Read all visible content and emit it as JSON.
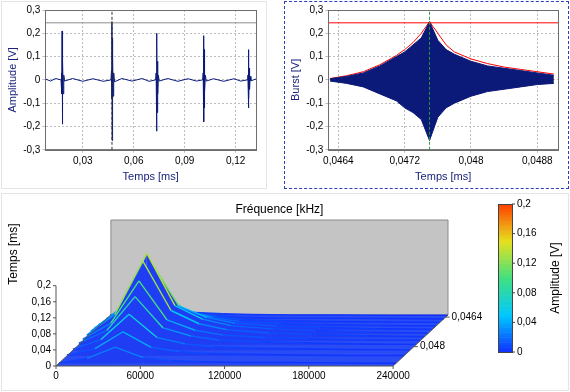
{
  "chart_data": [
    {
      "type": "line",
      "x_label": "Temps [ms]",
      "y_label": "Amplitude [V]",
      "x": [
        0.008,
        0.011,
        0.014,
        0.0172,
        0.0175,
        0.0177,
        0.0178,
        0.0179,
        0.018,
        0.0181,
        0.0183,
        0.0185,
        0.0188,
        0.0193,
        0.024,
        0.03,
        0.036,
        0.042,
        0.0466,
        0.0469,
        0.0471,
        0.0472,
        0.0473,
        0.0474,
        0.0475,
        0.0477,
        0.0479,
        0.0482,
        0.0487,
        0.053,
        0.059,
        0.065,
        0.069,
        0.0729,
        0.0732,
        0.0734,
        0.0735,
        0.0736,
        0.0737,
        0.0738,
        0.074,
        0.0742,
        0.0745,
        0.075,
        0.08,
        0.086,
        0.092,
        0.097,
        0.1006,
        0.1009,
        0.1011,
        0.1012,
        0.1013,
        0.1014,
        0.1015,
        0.1017,
        0.1019,
        0.1022,
        0.1027,
        0.107,
        0.113,
        0.119,
        0.123,
        0.1269,
        0.1272,
        0.1274,
        0.1275,
        0.1276,
        0.1277,
        0.1278,
        0.128,
        0.1282,
        0.1285,
        0.129,
        0.132
      ],
      "series": [
        {
          "color": "#0b1a78",
          "values": [
            0.004,
            -0.005,
            0.006,
            0,
            0.03,
            -0.06,
            0.21,
            -0.19,
            0.15,
            -0.13,
            0.08,
            -0.06,
            0.02,
            -0.005,
            0.006,
            -0.006,
            0.005,
            -0.006,
            0,
            0.04,
            -0.08,
            0.25,
            -0.26,
            0.18,
            -0.16,
            0.1,
            -0.07,
            0.03,
            -0.008,
            0.006,
            -0.005,
            0.006,
            -0.006,
            0,
            0.03,
            -0.07,
            0.2,
            -0.22,
            0.15,
            -0.14,
            0.08,
            -0.06,
            0.02,
            -0.005,
            0.006,
            -0.006,
            0.005,
            -0.005,
            0,
            0.03,
            -0.06,
            0.19,
            -0.18,
            0.13,
            -0.12,
            0.07,
            -0.05,
            0.02,
            -0.005,
            0.005,
            -0.006,
            0.005,
            -0.005,
            0,
            0.02,
            -0.04,
            0.13,
            -0.12,
            0.09,
            -0.08,
            0.05,
            -0.04,
            0.015,
            -0.004,
            0.004
          ]
        }
      ],
      "xlim": [
        0.008,
        0.132
      ],
      "xticks": [
        {
          "value": 0.03,
          "label": "0,03"
        },
        {
          "value": 0.06,
          "label": "0,06"
        },
        {
          "value": 0.09,
          "label": "0,09"
        },
        {
          "value": 0.12,
          "label": "0,12"
        }
      ],
      "ylim": [
        -0.3,
        0.3
      ],
      "yticks": [
        {
          "value": -0.3,
          "label": "-0,3"
        },
        {
          "value": -0.2,
          "label": "-0,2"
        },
        {
          "value": -0.1,
          "label": "-0,1"
        },
        0,
        {
          "value": 0.1,
          "label": "0,1"
        },
        {
          "value": 0.2,
          "label": "0,2"
        },
        {
          "value": 0.3,
          "label": "0,3"
        }
      ],
      "cursor": {
        "x": 0.0472,
        "y": 0.245,
        "colors": [
          "#8c8c8c",
          "#303030"
        ]
      },
      "grid": true
    },
    {
      "type": "line",
      "x_label": "Temps [ms]",
      "y_label": "Burst [V]",
      "x": [
        0.0463,
        0.0465,
        0.0467,
        0.0469,
        0.0471,
        0.0472,
        0.0473,
        0.0474,
        0.0475,
        0.0476,
        0.0477,
        0.0478,
        0.048,
        0.0482,
        0.0484,
        0.0486,
        0.0488,
        0.049
      ],
      "series": [
        {
          "type": "area",
          "color": "#0b1a78",
          "values": [
            0.005,
            0.015,
            0.03,
            0.06,
            0.1,
            0.12,
            0.15,
            0.18,
            0.25,
            0.17,
            0.13,
            0.11,
            0.08,
            0.06,
            0.05,
            0.04,
            0.03,
            0.02
          ]
        },
        {
          "type": "area",
          "color": "#0b1a78",
          "values": [
            -0.005,
            -0.015,
            -0.03,
            -0.06,
            -0.09,
            -0.12,
            -0.14,
            -0.17,
            -0.26,
            -0.16,
            -0.12,
            -0.1,
            -0.07,
            -0.05,
            -0.04,
            -0.03,
            -0.02,
            -0.015
          ]
        },
        {
          "type": "line",
          "color": "#ff0000",
          "values": [
            0.006,
            0.018,
            0.035,
            0.065,
            0.105,
            0.13,
            0.16,
            0.2,
            0.25,
            0.2,
            0.15,
            0.12,
            0.09,
            0.07,
            0.055,
            0.045,
            0.035,
            0.025
          ]
        }
      ],
      "xlim": [
        0.04628,
        0.04905
      ],
      "xticks": [
        {
          "value": 0.0464,
          "label": "0,0464"
        },
        {
          "value": 0.0472,
          "label": "0,0472"
        },
        {
          "value": 0.048,
          "label": "0,048"
        },
        {
          "value": 0.0488,
          "label": "0,0488"
        }
      ],
      "ylim": [
        -0.3,
        0.3
      ],
      "yticks": [
        {
          "value": -0.3,
          "label": "-0,3"
        },
        {
          "value": -0.2,
          "label": "-0,2"
        },
        {
          "value": -0.1,
          "label": "-0,1"
        },
        0,
        {
          "value": 0.1,
          "label": "0,1"
        },
        {
          "value": 0.2,
          "label": "0,2"
        },
        {
          "value": 0.3,
          "label": "0,3"
        }
      ],
      "cursor": {
        "x": 0.0475,
        "y": 0.245,
        "colors": [
          "#ff0000",
          "#2a9a3a"
        ]
      },
      "grid": true
    },
    {
      "type": "waterfall",
      "x_label": "Fréquence [kHz]",
      "y_label": "Temps [ms]",
      "x": [
        0,
        20000,
        40000,
        60000,
        80000,
        100000,
        130000,
        160000,
        200000,
        240000
      ],
      "xlim": [
        0,
        240000
      ],
      "xticks": [
        0,
        60000,
        120000,
        180000,
        240000
      ],
      "ylim": [
        0,
        0.2
      ],
      "yticks": [
        0,
        {
          "value": 0.04,
          "label": "0,04"
        },
        {
          "value": 0.08,
          "label": "0,08"
        },
        {
          "value": 0.12,
          "label": "0,12"
        },
        {
          "value": 0.16,
          "label": "0,16"
        },
        {
          "value": 0.2,
          "label": "0,2"
        }
      ],
      "z": [
        0.0463,
        0.0465,
        0.0467,
        0.0469,
        0.0471,
        0.0473,
        0.0475,
        0.0477,
        0.0479,
        0.0482,
        0.0485,
        0.0489
      ],
      "zlim": [
        0.04628,
        0.04905
      ],
      "zticks": [
        {
          "value": 0.0464,
          "label": "0,0464"
        },
        {
          "value": 0.048,
          "label": "0,048"
        }
      ],
      "series": [
        {
          "values": [
            0.001,
            0.006,
            0.02,
            0.007,
            0.004,
            0.002,
            0.001,
            0.001,
            0,
            0
          ]
        },
        {
          "values": [
            0.001,
            0.012,
            0.04,
            0.014,
            0.007,
            0.004,
            0.002,
            0.002,
            0.001,
            0
          ]
        },
        {
          "values": [
            0.002,
            0.024,
            0.08,
            0.028,
            0.014,
            0.008,
            0.005,
            0.003,
            0.002,
            0.001
          ]
        },
        {
          "values": [
            0.004,
            0.036,
            0.12,
            0.042,
            0.022,
            0.012,
            0.007,
            0.005,
            0.002,
            0.001
          ]
        },
        {
          "values": [
            0.005,
            0.051,
            0.17,
            0.06,
            0.031,
            0.017,
            0.01,
            0.007,
            0.003,
            0.002
          ]
        },
        {
          "values": [
            0.006,
            0.06,
            0.2,
            0.07,
            0.036,
            0.02,
            0.012,
            0.008,
            0.004,
            0.002
          ]
        },
        {
          "values": [
            0.006,
            0.057,
            0.19,
            0.067,
            0.034,
            0.019,
            0.011,
            0.008,
            0.004,
            0.002
          ]
        },
        {
          "values": [
            0.005,
            0.045,
            0.15,
            0.053,
            0.027,
            0.015,
            0.009,
            0.006,
            0.003,
            0.002
          ]
        },
        {
          "values": [
            0.004,
            0.036,
            0.12,
            0.042,
            0.022,
            0.012,
            0.007,
            0.005,
            0.002,
            0.001
          ]
        },
        {
          "values": [
            0.003,
            0.027,
            0.09,
            0.032,
            0.016,
            0.009,
            0.005,
            0.004,
            0.002,
            0.001
          ]
        },
        {
          "values": [
            0.002,
            0.018,
            0.06,
            0.021,
            0.011,
            0.006,
            0.004,
            0.002,
            0.001,
            0.001
          ]
        },
        {
          "values": [
            0.001,
            0.012,
            0.04,
            0.014,
            0.007,
            0.004,
            0.002,
            0.002,
            0.001,
            0
          ]
        }
      ],
      "colorbar": {
        "label": "Amplitude [V]",
        "range": [
          0,
          0.2
        ],
        "ticks": [
          0,
          {
            "value": 0.04,
            "label": "0,04"
          },
          {
            "value": 0.08,
            "label": "0,08"
          },
          {
            "value": 0.12,
            "label": "0,12"
          },
          {
            "value": 0.16,
            "label": "0,16"
          },
          {
            "value": 0.2,
            "label": "0,2"
          }
        ]
      }
    }
  ]
}
